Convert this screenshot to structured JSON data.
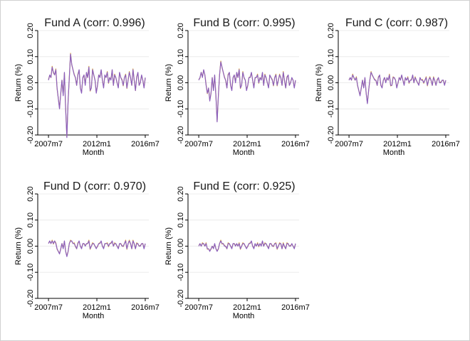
{
  "chart_data": {
    "type": "line",
    "colors": {
      "series_1": "#d9a53a",
      "series_2": "#8b5fbf",
      "series_3": "#5b78c5"
    },
    "panels": [
      {
        "title": "Fund A (corr: 0.996)",
        "xlabel": "Month",
        "ylabel": "Return (%)",
        "ylim": [
          -0.2,
          0.2
        ],
        "y_ticks": [
          "-0.20",
          "-0.10",
          "0.00",
          "0.10",
          "0.20"
        ],
        "x_ticks": [
          "2007m7",
          "2012m1",
          "2016m7"
        ],
        "xlim": [
          "2006m7",
          "2016m11"
        ],
        "y": [
          0.01,
          0.03,
          0.02,
          0.06,
          0.04,
          0.03,
          0.05,
          -0.02,
          -0.06,
          -0.1,
          -0.04,
          0.01,
          -0.05,
          0.04,
          -0.1,
          -0.21,
          -0.07,
          0.02,
          0.11,
          0.07,
          0.05,
          0.03,
          0.02,
          -0.01,
          0.03,
          0.05,
          -0.02,
          -0.04,
          0.02,
          0.03,
          -0.01,
          0.04,
          0.02,
          0.06,
          -0.03,
          -0.02,
          0.05,
          0.03,
          0.01,
          -0.04,
          -0.01,
          0.03,
          0.02,
          0.05,
          0.01,
          -0.02,
          0.03,
          0.02,
          0.04,
          0.0,
          0.02,
          0.01,
          0.05,
          -0.01,
          0.03,
          0.02,
          0.0,
          -0.02,
          0.04,
          0.02,
          0.01,
          -0.01,
          0.02,
          0.03,
          -0.02,
          0.01,
          0.04,
          0.02,
          -0.01,
          0.05,
          0.01,
          -0.03,
          0.02,
          0.04,
          -0.01,
          0.0,
          0.03,
          0.01,
          -0.02,
          0.02
        ]
      },
      {
        "title": "Fund B (corr: 0.995)",
        "xlabel": "Month",
        "ylabel": "Return (%)",
        "ylim": [
          -0.2,
          0.2
        ],
        "y_ticks": [
          "-0.20",
          "-0.10",
          "0.00",
          "0.10",
          "0.20"
        ],
        "x_ticks": [
          "2007m7",
          "2012m1",
          "2016m7"
        ],
        "xlim": [
          "2006m7",
          "2016m11"
        ],
        "y": [
          0.01,
          0.02,
          0.04,
          0.02,
          0.05,
          0.03,
          -0.01,
          -0.04,
          -0.02,
          -0.07,
          -0.04,
          0.02,
          -0.03,
          0.03,
          -0.05,
          -0.15,
          -0.05,
          0.03,
          0.08,
          0.06,
          0.04,
          0.02,
          0.01,
          -0.02,
          0.03,
          0.04,
          -0.01,
          -0.03,
          0.02,
          0.03,
          0.0,
          0.04,
          0.02,
          0.05,
          -0.02,
          -0.01,
          0.04,
          0.02,
          0.01,
          -0.03,
          -0.01,
          0.02,
          0.02,
          0.04,
          0.01,
          -0.02,
          0.02,
          0.02,
          0.03,
          0.0,
          0.02,
          0.01,
          0.04,
          -0.01,
          0.03,
          0.02,
          0.0,
          -0.02,
          0.03,
          0.02,
          0.01,
          -0.01,
          0.02,
          0.03,
          -0.01,
          0.01,
          0.03,
          0.02,
          -0.01,
          0.04,
          0.01,
          -0.02,
          0.02,
          0.03,
          -0.01,
          0.0,
          0.02,
          0.01,
          -0.02,
          0.01
        ]
      },
      {
        "title": "Fund C (corr: 0.987)",
        "xlabel": "Month",
        "ylabel": "Return (%)",
        "ylim": [
          -0.2,
          0.2
        ],
        "y_ticks": [
          "-0.20",
          "-0.10",
          "0.00",
          "0.10",
          "0.20"
        ],
        "x_ticks": [
          "2007m7",
          "2012m1",
          "2016m7"
        ],
        "xlim": [
          "2006m7",
          "2016m11"
        ],
        "y": [
          0.01,
          0.02,
          0.01,
          0.03,
          0.02,
          0.01,
          0.02,
          -0.01,
          -0.03,
          -0.05,
          -0.02,
          0.01,
          -0.02,
          0.02,
          -0.04,
          -0.08,
          -0.03,
          0.01,
          0.04,
          0.03,
          0.02,
          0.01,
          0.01,
          -0.01,
          0.02,
          0.03,
          -0.01,
          -0.02,
          0.01,
          0.02,
          0.0,
          0.02,
          0.01,
          0.03,
          -0.01,
          -0.01,
          0.02,
          0.02,
          0.01,
          -0.02,
          0.0,
          0.02,
          0.01,
          0.03,
          0.01,
          -0.01,
          0.02,
          0.01,
          0.02,
          0.0,
          0.01,
          0.01,
          0.03,
          0.0,
          0.02,
          0.01,
          0.0,
          -0.01,
          0.02,
          0.01,
          0.01,
          0.0,
          0.01,
          0.02,
          -0.01,
          0.01,
          0.02,
          0.01,
          -0.01,
          0.02,
          0.01,
          -0.01,
          0.01,
          0.02,
          0.0,
          0.0,
          0.01,
          0.01,
          -0.01,
          0.01
        ]
      },
      {
        "title": "Fund D (corr: 0.970)",
        "xlabel": "Month",
        "ylabel": "Return (%)",
        "ylim": [
          -0.2,
          0.2
        ],
        "y_ticks": [
          "-0.20",
          "-0.10",
          "0.00",
          "0.10",
          "0.20"
        ],
        "x_ticks": [
          "2007m7",
          "2012m1",
          "2016m7"
        ],
        "xlim": [
          "2006m7",
          "2016m11"
        ],
        "y": [
          0.01,
          0.02,
          0.01,
          0.02,
          0.01,
          0.02,
          0.01,
          -0.01,
          -0.02,
          -0.03,
          -0.01,
          0.01,
          -0.01,
          0.02,
          -0.02,
          -0.04,
          -0.02,
          0.01,
          0.02,
          0.02,
          0.01,
          0.01,
          0.0,
          -0.01,
          0.01,
          0.02,
          0.0,
          -0.01,
          0.01,
          0.01,
          0.0,
          0.01,
          0.01,
          0.02,
          -0.01,
          0.0,
          0.01,
          0.01,
          0.0,
          -0.01,
          0.0,
          0.01,
          0.01,
          0.02,
          0.0,
          -0.01,
          0.01,
          0.01,
          0.01,
          0.0,
          0.01,
          0.01,
          0.02,
          0.0,
          0.01,
          0.01,
          0.0,
          -0.01,
          0.01,
          0.01,
          0.0,
          0.0,
          0.01,
          0.02,
          -0.01,
          0.01,
          0.02,
          0.01,
          -0.01,
          0.02,
          0.01,
          -0.01,
          0.01,
          0.01,
          0.0,
          0.0,
          0.01,
          0.01,
          -0.01,
          0.01
        ]
      },
      {
        "title": "Fund E (corr: 0.925)",
        "xlabel": "Month",
        "ylabel": "Return (%)",
        "ylim": [
          -0.2,
          0.2
        ],
        "y_ticks": [
          "-0.20",
          "-0.10",
          "0.00",
          "0.10",
          "0.20"
        ],
        "x_ticks": [
          "2007m7",
          "2012m1",
          "2016m7"
        ],
        "xlim": [
          "2006m7",
          "2016m11"
        ],
        "y": [
          0.0,
          0.01,
          0.0,
          0.01,
          0.01,
          0.0,
          0.01,
          -0.01,
          -0.01,
          -0.02,
          -0.01,
          0.0,
          -0.01,
          0.01,
          -0.01,
          -0.02,
          -0.01,
          0.01,
          0.02,
          0.01,
          0.01,
          0.0,
          0.0,
          -0.01,
          0.01,
          0.01,
          0.0,
          -0.01,
          0.01,
          0.01,
          0.0,
          0.01,
          0.0,
          0.01,
          -0.01,
          0.0,
          0.01,
          0.01,
          0.0,
          -0.01,
          0.0,
          0.01,
          0.01,
          0.02,
          0.0,
          -0.01,
          0.01,
          0.0,
          0.01,
          0.0,
          0.01,
          0.0,
          0.02,
          0.0,
          0.01,
          0.01,
          0.0,
          -0.01,
          0.01,
          0.01,
          0.0,
          0.0,
          0.01,
          0.01,
          -0.01,
          0.0,
          0.01,
          0.01,
          -0.01,
          0.01,
          0.0,
          -0.01,
          0.01,
          0.01,
          0.0,
          0.0,
          0.01,
          0.0,
          -0.01,
          0.01
        ]
      }
    ]
  }
}
